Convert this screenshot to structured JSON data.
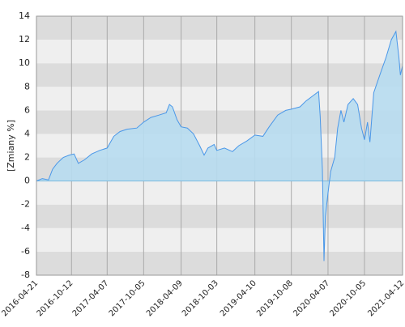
{
  "chart_data": {
    "type": "area",
    "y_label": "[Zmiany %]",
    "x": [
      "2016-04-21",
      "2016-05-20",
      "2016-06-20",
      "2016-07-10",
      "2016-08-01",
      "2016-09-01",
      "2016-10-01",
      "2016-10-25",
      "2016-11-15",
      "2016-12-15",
      "2017-01-20",
      "2017-03-01",
      "2017-04-07",
      "2017-05-10",
      "2017-06-10",
      "2017-07-15",
      "2017-09-01",
      "2017-10-05",
      "2017-11-10",
      "2017-12-20",
      "2018-01-25",
      "2018-02-10",
      "2018-02-25",
      "2018-03-20",
      "2018-04-09",
      "2018-05-10",
      "2018-06-10",
      "2018-07-10",
      "2018-08-01",
      "2018-08-20",
      "2018-09-20",
      "2018-10-03",
      "2018-11-10",
      "2018-12-20",
      "2019-01-20",
      "2019-03-01",
      "2019-04-10",
      "2019-05-20",
      "2019-06-20",
      "2019-08-01",
      "2019-09-10",
      "2019-10-08",
      "2019-11-20",
      "2019-12-20",
      "2020-01-20",
      "2020-02-20",
      "2020-02-28",
      "2020-03-10",
      "2020-03-18",
      "2020-03-25",
      "2020-04-07",
      "2020-04-20",
      "2020-05-10",
      "2020-05-25",
      "2020-06-10",
      "2020-06-25",
      "2020-07-15",
      "2020-08-10",
      "2020-09-01",
      "2020-09-20",
      "2020-10-05",
      "2020-10-20",
      "2020-11-01",
      "2020-11-20",
      "2020-12-20",
      "2021-01-20",
      "2021-02-15",
      "2021-03-10",
      "2021-03-25",
      "2021-04-01",
      "2021-04-12"
    ],
    "values": [
      0,
      0.2,
      0.1,
      1.0,
      1.5,
      2.0,
      2.2,
      2.3,
      1.5,
      1.8,
      2.3,
      2.6,
      2.8,
      3.8,
      4.2,
      4.4,
      4.5,
      5.0,
      5.4,
      5.6,
      5.8,
      6.5,
      6.3,
      5.2,
      4.6,
      4.5,
      4.0,
      3.0,
      2.2,
      2.8,
      3.1,
      2.6,
      2.8,
      2.5,
      3.0,
      3.4,
      3.9,
      3.8,
      4.6,
      5.6,
      6.0,
      6.1,
      6.3,
      6.8,
      7.2,
      7.6,
      5.5,
      1.0,
      -6.8,
      -3.0,
      -1.0,
      0.8,
      2.0,
      4.5,
      6.0,
      5.0,
      6.5,
      7.0,
      6.5,
      4.5,
      3.5,
      5.0,
      3.3,
      7.5,
      9.0,
      10.5,
      12.0,
      12.7,
      10.5,
      9.0,
      9.8
    ],
    "color": "#4a97e8",
    "fill": "#b7dcef",
    "xlim": [
      "2016-04-21",
      "2021-04-12"
    ],
    "xticks": [
      "2016-04-21",
      "2016-10-12",
      "2017-04-07",
      "2017-10-05",
      "2018-04-09",
      "2018-10-03",
      "2019-04-10",
      "2019-10-08",
      "2020-04-07",
      "2020-10-05",
      "2021-04-12"
    ],
    "ylim": [
      -8,
      14
    ],
    "yticks": [
      -8,
      -6,
      -4,
      -2,
      0,
      2,
      4,
      6,
      8,
      10,
      12,
      14
    ],
    "grid": true
  }
}
